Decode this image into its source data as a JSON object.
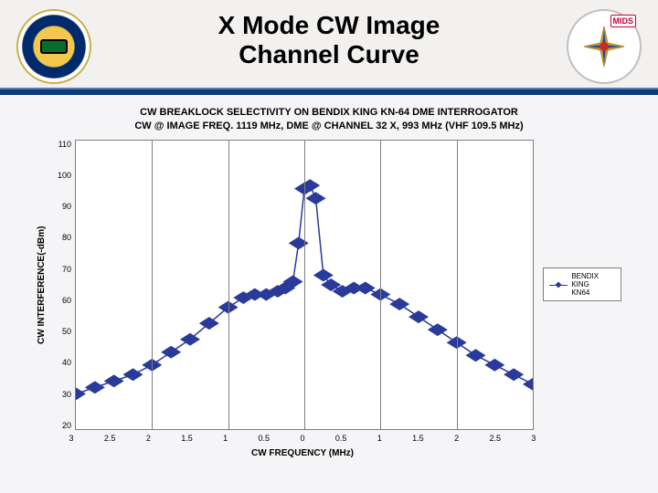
{
  "header": {
    "title": "X Mode CW Image\nChannel Curve",
    "mids_badge": "MIDS"
  },
  "chart": {
    "type": "line",
    "title": "CW BREAKLOCK SELECTIVITY ON BENDIX KING KN-64 DME INTERROGATOR\nCW @ IMAGE FREQ. 1119 MHz, DME @ CHANNEL 32 X, 993 MHz (VHF 109.5 MHz)",
    "xlabel": "CW FREQUENCY (MHz)",
    "ylabel": "CW INTERFERENCE(-dBm)",
    "xlim": [
      0,
      12
    ],
    "ylim": [
      20,
      110
    ],
    "xticks": [
      0,
      1,
      2,
      3,
      4,
      5,
      6,
      7,
      8,
      9,
      10,
      11,
      12
    ],
    "xticklabels": [
      "3",
      "2.5",
      "2",
      "1.5",
      "1",
      "0.5",
      "0",
      "0.5",
      "1",
      "1.5",
      "2",
      "2.5",
      "3"
    ],
    "yticks": [
      20,
      30,
      40,
      50,
      60,
      70,
      80,
      90,
      100,
      110
    ],
    "vgrid_at_indices": [
      0,
      2,
      4,
      6,
      8,
      10,
      12
    ],
    "series_color": "#2a3a9a",
    "marker": "diamond",
    "marker_size": 4,
    "line_width": 1.5,
    "background_color": "#ffffff",
    "grid_color": "#7f7f7f",
    "legend": "BENDIX KING\nKN64",
    "data": {
      "x": [
        0.0,
        0.5,
        1.0,
        1.5,
        2.0,
        2.5,
        3.0,
        3.5,
        4.0,
        4.4,
        4.7,
        5.0,
        5.3,
        5.5,
        5.7,
        5.85,
        6.0,
        6.15,
        6.3,
        6.5,
        6.7,
        7.0,
        7.3,
        7.6,
        8.0,
        8.5,
        9.0,
        9.5,
        10.0,
        10.5,
        11.0,
        11.5,
        12.0
      ],
      "y": [
        31,
        33,
        35,
        37,
        40,
        44,
        48,
        53,
        58,
        61,
        62,
        62,
        63,
        64,
        66,
        78,
        95,
        96,
        92,
        68,
        65,
        63,
        64,
        64,
        62,
        59,
        55,
        51,
        47,
        43,
        40,
        37,
        34
      ]
    }
  }
}
